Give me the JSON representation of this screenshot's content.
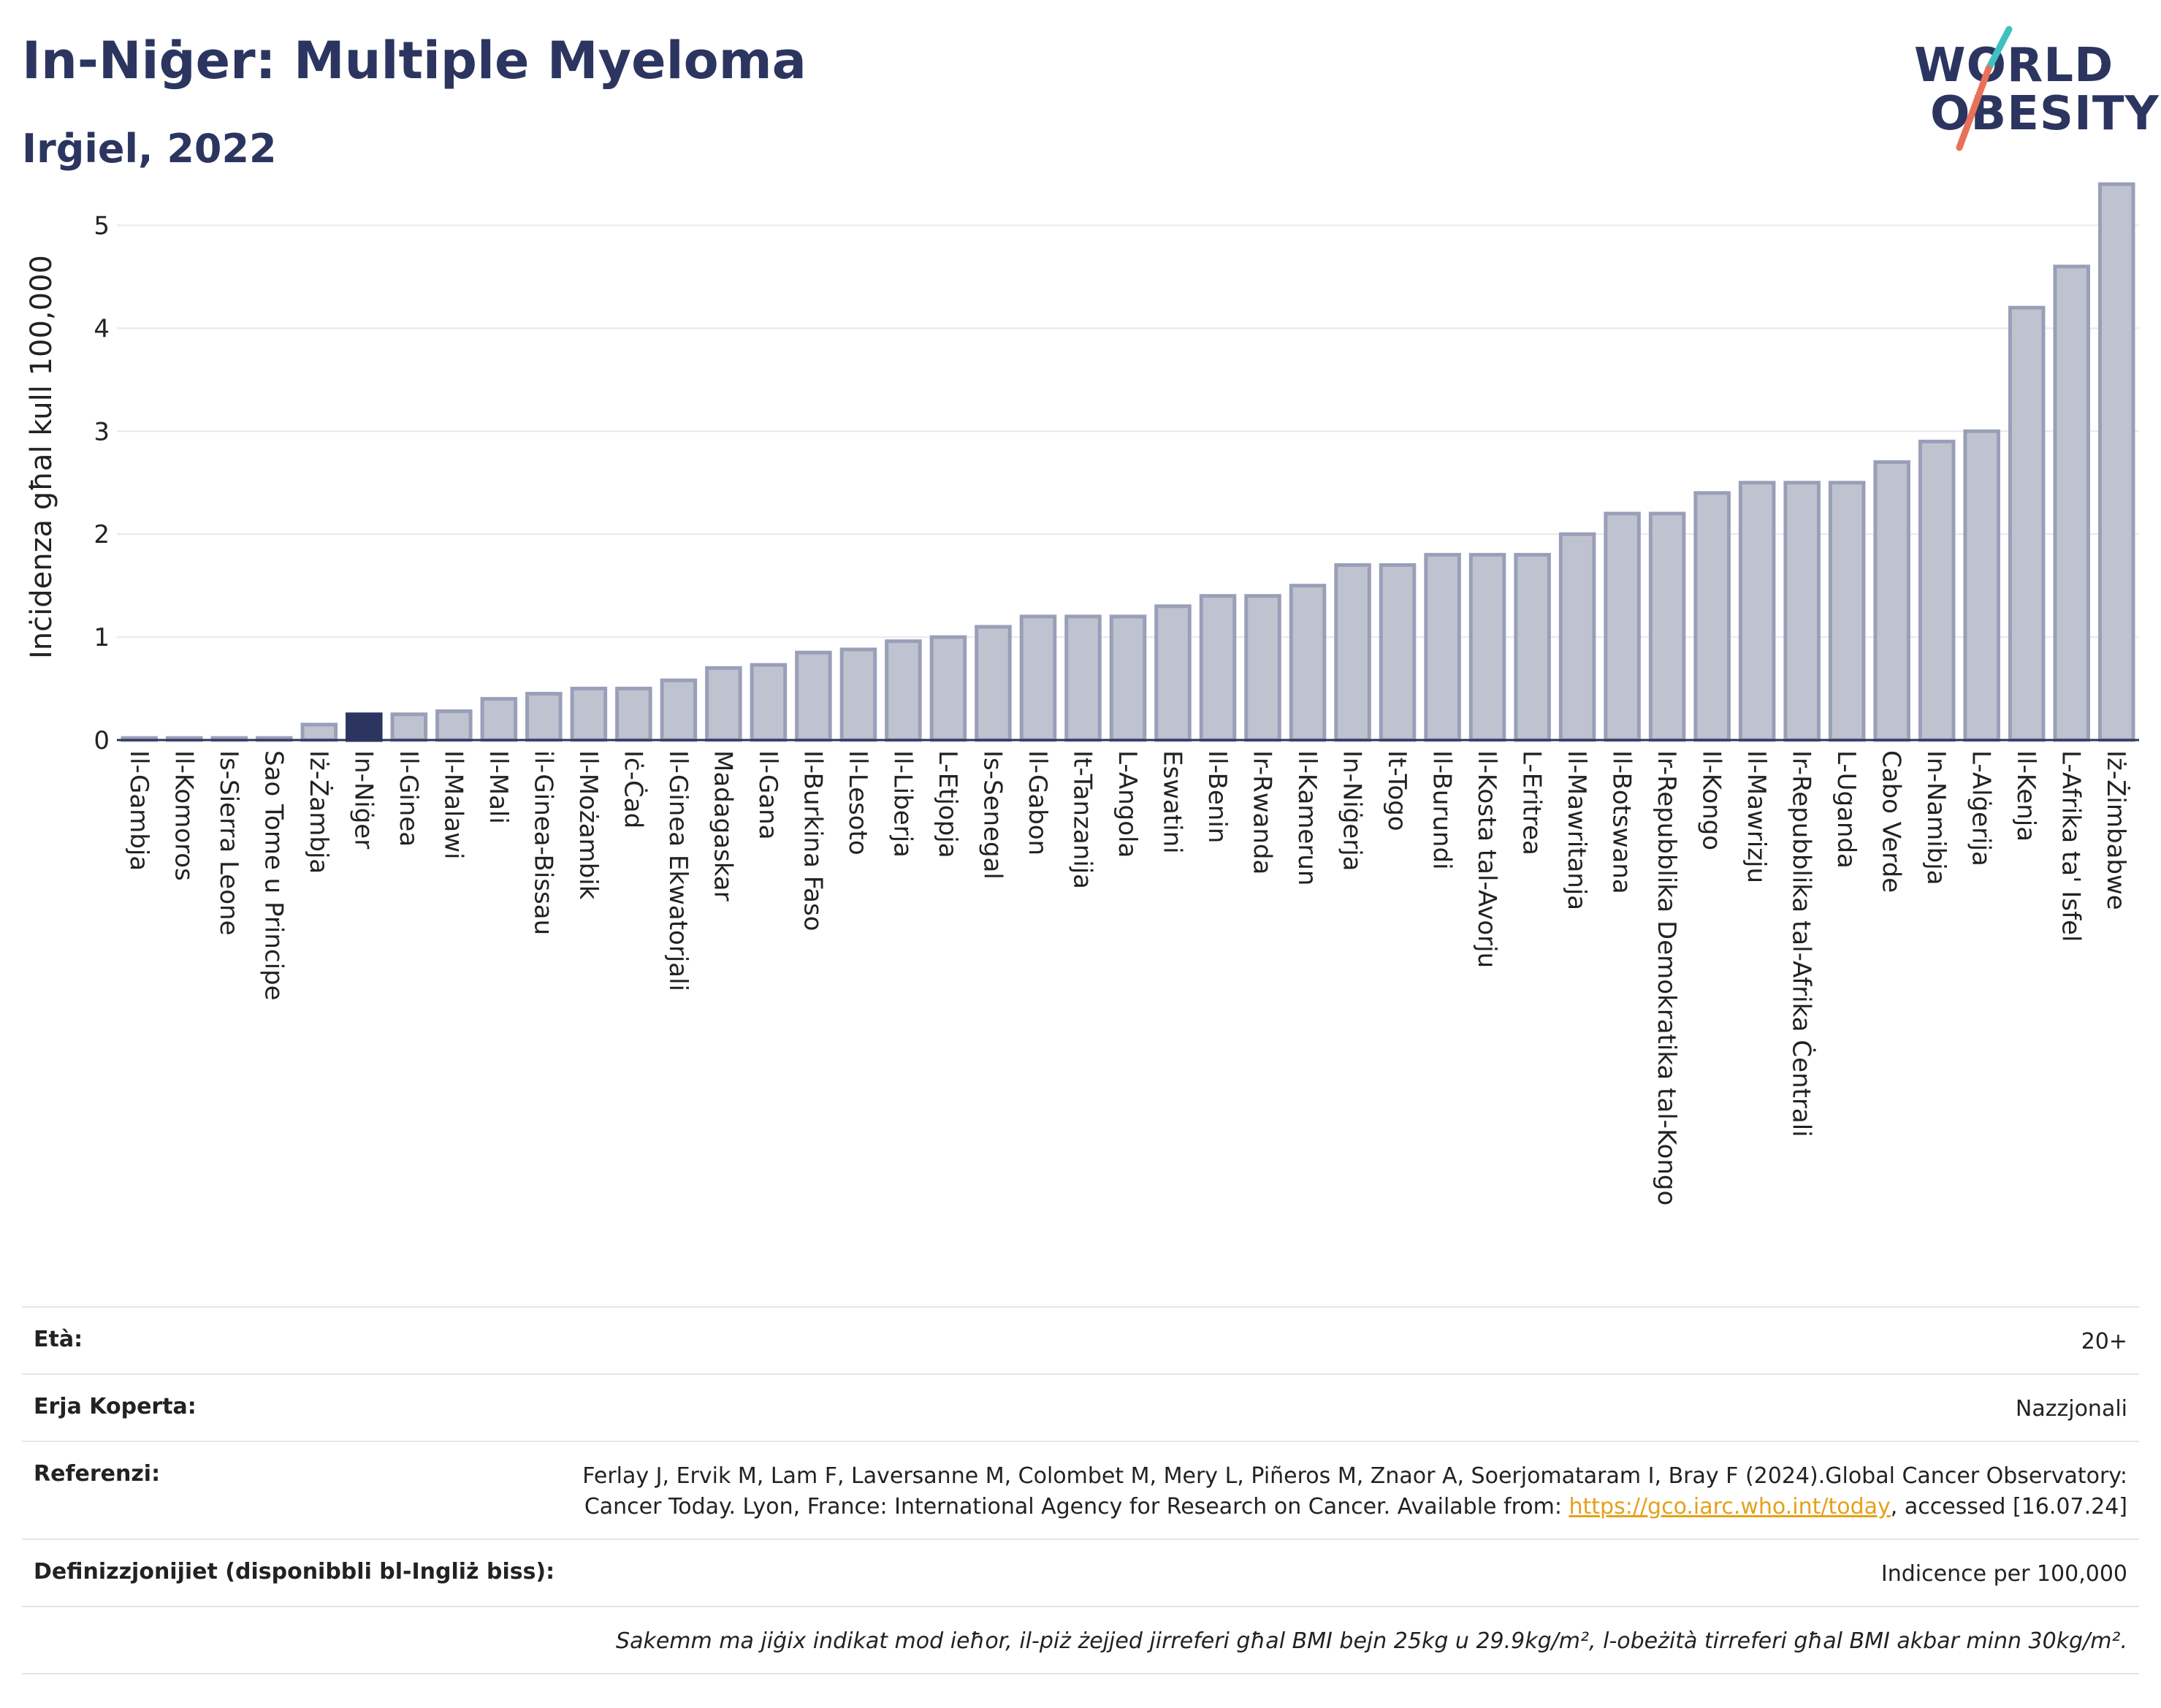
{
  "title": "In-Niġer: Multiple Myeloma",
  "subtitle": "Irġiel, 2022",
  "logo": {
    "line1": "WORLD",
    "line2": "OBESITY"
  },
  "colors": {
    "bar": "#bfc3d0",
    "bar_stroke": "#9a9fb8",
    "highlight": "#2b3560",
    "grid": "#e6e8ee",
    "title": "#2b3560",
    "link": "#e4a11b"
  },
  "chart_data": {
    "type": "bar",
    "ylabel": "Inċidenza għal kull 100,000",
    "ylim": [
      0,
      5.5
    ],
    "yticks": [
      0,
      1,
      2,
      3,
      4,
      5
    ],
    "grid": true,
    "highlight": "In-Niġer",
    "categories": [
      "Il-Gambja",
      "Il-Komoros",
      "Is-Sierra Leone",
      "Sao Tome u Principe",
      "Iż-Żambja",
      "In-Niġer",
      "Il-Ginea",
      "Il-Malawi",
      "Il-Mali",
      "il-Ginea-Bissau",
      "Il-Możambik",
      "Iċ-Ċad",
      "Il-Ginea Ekwatorjali",
      "Madagaskar",
      "Il-Gana",
      "Il-Burkina Faso",
      "Il-Lesoto",
      "Il-Liberja",
      "L-Etjopja",
      "Is-Senegal",
      "Il-Gabon",
      "It-Tanzanija",
      "L-Angola",
      "Eswatini",
      "Il-Benin",
      "Ir-Rwanda",
      "Il-Kamerun",
      "In-Niġerja",
      "It-Togo",
      "Il-Burundi",
      "Il-Kosta tal-Avorju",
      "L-Eritrea",
      "Il-Mawritanja",
      "Il-Botswana",
      "Ir-Repubblika Demokratika tal-Kongo",
      "Il-Kongo",
      "Il-Mawrizju",
      "Ir-Repubblika tal-Afrika Ċentrali",
      "L-Uganda",
      "Cabo Verde",
      "In-Namibja",
      "L-Alġerija",
      "Il-Kenja",
      "L-Afrika ta' Isfel",
      "Iż-Żimbabwe"
    ],
    "values": [
      0.02,
      0.02,
      0.02,
      0.02,
      0.15,
      0.25,
      0.25,
      0.28,
      0.4,
      0.45,
      0.5,
      0.5,
      0.58,
      0.7,
      0.73,
      0.85,
      0.88,
      0.96,
      1.0,
      1.1,
      1.2,
      1.2,
      1.2,
      1.3,
      1.4,
      1.4,
      1.5,
      1.7,
      1.7,
      1.8,
      1.8,
      1.8,
      2.0,
      2.2,
      2.2,
      2.4,
      2.5,
      2.5,
      2.5,
      2.7,
      2.9,
      3.0,
      4.2,
      4.6,
      5.4
    ]
  },
  "info": {
    "age_label": "Età:",
    "age_value": "20+",
    "area_label": "Erja Koperta:",
    "area_value": "Nazzjonali",
    "ref_label": "Referenzi:",
    "ref_text_1": "Ferlay J, Ervik M, Lam F, Laversanne M, Colombet M, Mery L, Piñeros M, Znaor A, Soerjomataram I, Bray F (2024).Global Cancer Observatory: Cancer Today. Lyon, France: International Agency for Research on Cancer. Available from: ",
    "ref_link": "https://gco.iarc.who.int/today",
    "ref_text_2": ", accessed [16.07.24]",
    "def_label": "Definizzjonijiet (disponibbli bl-Ingliż biss):",
    "def_value": "Indicence per 100,000",
    "note": "Sakemm ma jiġix indikat mod ieħor, il-piż żejjed jirreferi għal BMI bejn 25kg u 29.9kg/m², l-obeżità tirreferi għal BMI akbar minn 30kg/m²."
  }
}
